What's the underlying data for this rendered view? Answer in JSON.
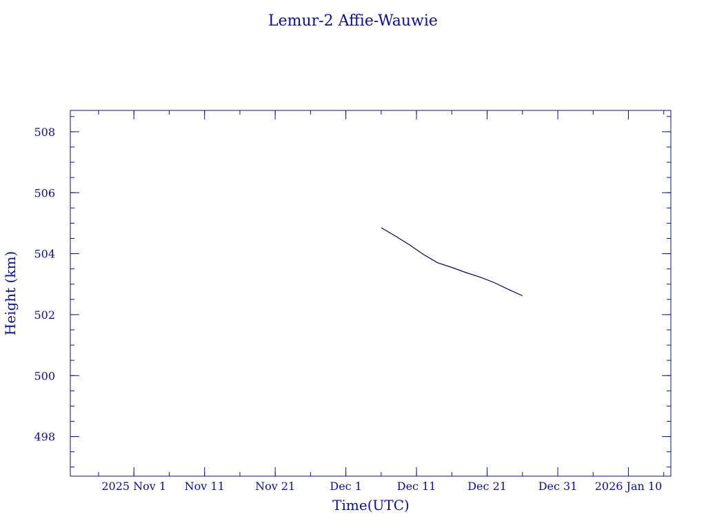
{
  "chart_data": {
    "type": "line",
    "title": "Lemur-2 Affie-Wauwie",
    "xlabel": "Time(UTC)",
    "ylabel": "Height (km)",
    "x_axis": {
      "type": "date",
      "min": "2025-10-23",
      "max": "2026-01-16",
      "ticks": [
        {
          "date": "2025-11-01",
          "label": "2025 Nov  1"
        },
        {
          "date": "2025-11-11",
          "label": "Nov 11"
        },
        {
          "date": "2025-11-21",
          "label": "Nov 21"
        },
        {
          "date": "2025-12-01",
          "label": "Dec  1"
        },
        {
          "date": "2025-12-11",
          "label": "Dec 11"
        },
        {
          "date": "2025-12-21",
          "label": "Dec 21"
        },
        {
          "date": "2025-12-31",
          "label": "Dec 31"
        },
        {
          "date": "2026-01-10",
          "label": "2026 Jan 10"
        }
      ]
    },
    "y_axis": {
      "min": 496.7,
      "max": 508.7,
      "ticks": [
        498,
        500,
        502,
        504,
        506,
        508
      ]
    },
    "grid": false,
    "series": [
      {
        "x": [
          "2025-12-06",
          "2025-12-08",
          "2025-12-10",
          "2025-12-12",
          "2025-12-14",
          "2025-12-16",
          "2025-12-18",
          "2025-12-20",
          "2025-12-22",
          "2025-12-24",
          "2025-12-26"
        ],
        "values": [
          504.85,
          504.58,
          504.29,
          503.97,
          503.7,
          503.55,
          503.38,
          503.23,
          503.05,
          502.83,
          502.62
        ]
      }
    ]
  }
}
